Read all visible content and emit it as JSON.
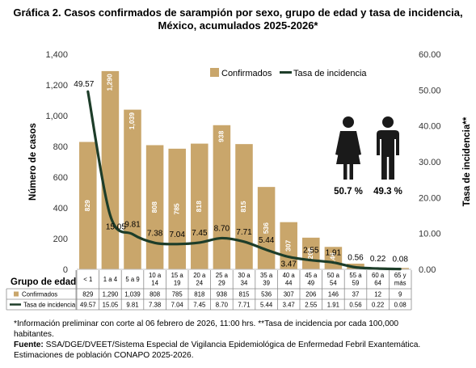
{
  "title_line1": "Gráfica 2. Casos confirmados  de sarampión por sexo, grupo de edad y tasa de incidencia,",
  "title_line2": "México, acumulados 2025-2026*",
  "footnotes": {
    "note_line1": "*Información preliminar con corte al 06 febrero de 2026, 11:00 hrs. **Tasa de incidencia por cada 100,000",
    "note_line2": "habitantes.",
    "source_label": "Fuente:",
    "source_text": " SSA/DGE/DVEET/Sistema Especial de Vigilancia Epidemiológica de Enfermedad Febril Exantemática.",
    "source_line2": "Estimaciones de población CONAPO 2025-2026."
  },
  "sex_split": {
    "female_pct": "50.7 %",
    "male_pct": "49.3 %",
    "female_icon": "woman-icon",
    "male_icon": "man-icon"
  },
  "chart_data": {
    "type": "bar",
    "categories": [
      [
        "< 1"
      ],
      [
        "1 a 4"
      ],
      [
        "5 a 9"
      ],
      [
        "10 a",
        "14"
      ],
      [
        "15 a",
        "19"
      ],
      [
        "20 a",
        "24"
      ],
      [
        "25 a",
        "29"
      ],
      [
        "30 a",
        "34"
      ],
      [
        "35 a",
        "39"
      ],
      [
        "40 a",
        "44"
      ],
      [
        "45 a",
        "49"
      ],
      [
        "50 a",
        "54"
      ],
      [
        "55 a",
        "59"
      ],
      [
        "60 a",
        "64"
      ],
      [
        "65 y",
        "más"
      ]
    ],
    "series": [
      {
        "name": "Confirmados",
        "type": "bar",
        "axis": "left",
        "color": "#c9a66b",
        "values": [
          829,
          1290,
          1039,
          808,
          785,
          818,
          938,
          815,
          536,
          307,
          206,
          146,
          37,
          12,
          9
        ],
        "labels": [
          "829",
          "1,290",
          "1,039",
          "808",
          "785",
          "818",
          "938",
          "815",
          "536",
          "307",
          "206",
          "146",
          "37",
          "12",
          "9"
        ]
      },
      {
        "name": "Tasa de incidencia",
        "type": "line",
        "axis": "right",
        "color": "#1d3d29",
        "values": [
          49.57,
          15.05,
          9.81,
          7.38,
          7.04,
          7.45,
          8.7,
          7.71,
          5.44,
          3.47,
          2.55,
          1.91,
          0.56,
          0.22,
          0.08
        ],
        "labels": [
          "49.57",
          "15.05",
          "9.81",
          "7.38",
          "7.04",
          "7.45",
          "8.70",
          "7.71",
          "5.44",
          "3.47",
          "2.55",
          "1.91",
          "0.56",
          "0.22",
          "0.08"
        ]
      }
    ],
    "ylabel": "Número de casos",
    "y2label": "Tasa de incidencia**",
    "ylim": [
      0,
      1400
    ],
    "y2lim": [
      0,
      60
    ],
    "yticks": [
      "0",
      "200",
      "400",
      "600",
      "800",
      "1,000",
      "1,200",
      "1,400"
    ],
    "y2ticks": [
      "0.00",
      "10.00",
      "20.00",
      "30.00",
      "40.00",
      "50.00",
      "60.00"
    ],
    "xlabel": "Grupo de edad",
    "legend_position": "top-right",
    "grid": false,
    "data_table": {
      "rows": [
        {
          "label": "Confirmados",
          "values": [
            "829",
            "1,290",
            "1,039",
            "808",
            "785",
            "818",
            "938",
            "815",
            "536",
            "307",
            "206",
            "146",
            "37",
            "12",
            "9"
          ]
        },
        {
          "label": "Tasa de incidencia",
          "values": [
            "49.57",
            "15.05",
            "9.81",
            "7.38",
            "7.04",
            "7.45",
            "8.70",
            "7.71",
            "5.44",
            "3.47",
            "2.55",
            "1.91",
            "0.56",
            "0.22",
            "0.08"
          ]
        }
      ]
    }
  }
}
